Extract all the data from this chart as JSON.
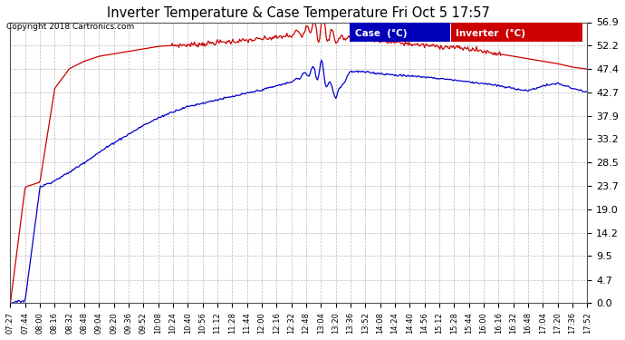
{
  "title": "Inverter Temperature & Case Temperature Fri Oct 5 17:57",
  "copyright": "Copyright 2018 Cartronics.com",
  "bg_color": "#ffffff",
  "plot_bg_color": "#ffffff",
  "grid_color": "#bbbbbb",
  "yticks": [
    0.0,
    4.7,
    9.5,
    14.2,
    19.0,
    23.7,
    28.5,
    33.2,
    37.9,
    42.7,
    47.4,
    52.2,
    56.9
  ],
  "ymin": 0.0,
  "ymax": 56.9,
  "case_color": "#0000cc",
  "inverter_color": "#cc0000",
  "legend_case_bg": "#0000bb",
  "legend_inv_bg": "#cc0000",
  "xtick_labels": [
    "07:27",
    "07:44",
    "08:00",
    "08:16",
    "08:32",
    "08:48",
    "09:04",
    "09:20",
    "09:36",
    "09:52",
    "10:08",
    "10:24",
    "10:40",
    "10:56",
    "11:12",
    "11:28",
    "11:44",
    "12:00",
    "12:16",
    "12:32",
    "12:48",
    "13:04",
    "13:20",
    "13:36",
    "13:52",
    "14:08",
    "14:24",
    "14:40",
    "14:56",
    "15:12",
    "15:28",
    "15:44",
    "16:00",
    "16:16",
    "16:32",
    "16:48",
    "17:04",
    "17:20",
    "17:36",
    "17:52"
  ]
}
